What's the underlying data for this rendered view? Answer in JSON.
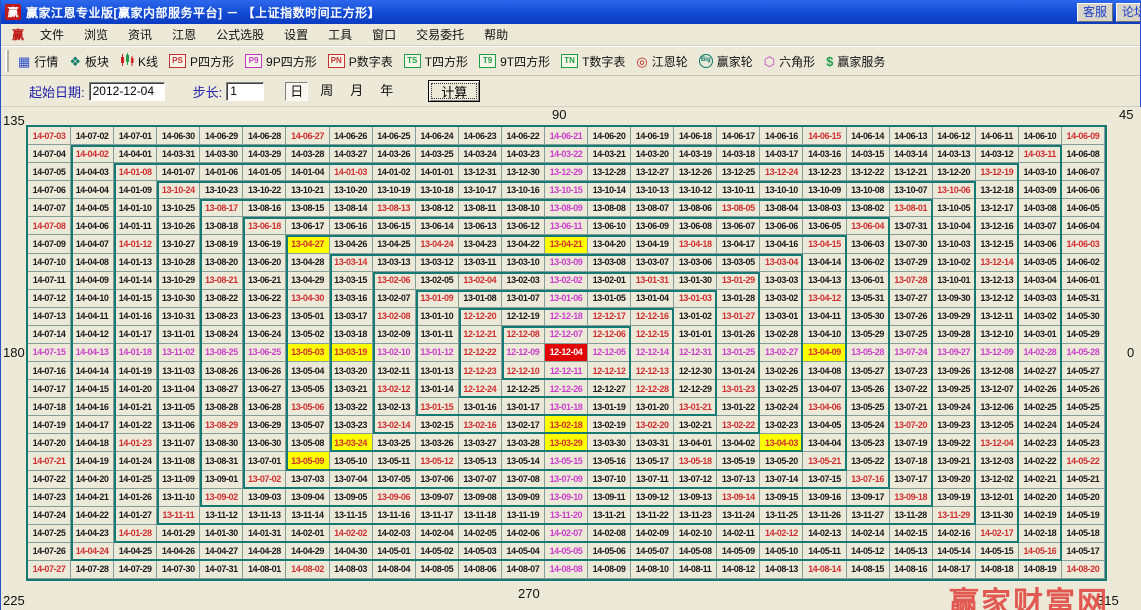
{
  "window": {
    "logo": "赢",
    "title": "赢家江恩专业版[赢家内部服务平台] － 【上证指数时间正方形】",
    "titlebar_buttons": [
      "客服",
      "论坛"
    ]
  },
  "menu": {
    "items": [
      "赢",
      "文件",
      "浏览",
      "资讯",
      "江恩",
      "公式选股",
      "设置",
      "工具",
      "窗口",
      "交易委托",
      "帮助"
    ]
  },
  "toolbar": {
    "items": [
      {
        "icon": "quote-table-icon",
        "label": "行情"
      },
      {
        "icon": "blocks-icon",
        "label": "板块"
      },
      {
        "icon": "kline-icon",
        "label": "K线"
      },
      {
        "icon": "badge-ps-icon",
        "badge": "PS",
        "badge_color": "#c43232",
        "label": "P四方形"
      },
      {
        "icon": "badge-p9-icon",
        "badge": "P9",
        "badge_color": "#c436c4",
        "label": "9P四方形"
      },
      {
        "icon": "badge-pn-icon",
        "badge": "PN",
        "badge_color": "#c43232",
        "label": "P数字表"
      },
      {
        "icon": "badge-ts-icon",
        "badge": "TS",
        "badge_color": "#1f9e48",
        "label": "T四方形"
      },
      {
        "icon": "badge-t9-icon",
        "badge": "T9",
        "badge_color": "#1f9e48",
        "label": "9T四方形"
      },
      {
        "icon": "badge-tn-icon",
        "badge": "TN",
        "badge_color": "#1f9e48",
        "label": "T数字表"
      },
      {
        "icon": "gann-wheel-icon",
        "label": "江恩轮"
      },
      {
        "icon": "winner-wheel-icon",
        "wheel_text": "Big",
        "label": "赢家轮"
      },
      {
        "icon": "hexagon-icon",
        "label": "六角形"
      },
      {
        "icon": "dollar-icon",
        "label": "赢家服务"
      }
    ]
  },
  "controls": {
    "start_date_label": "起始日期:",
    "start_date_value": "2012-12-04",
    "step_label": "步长:",
    "step_value": "1",
    "period_options": [
      "日",
      "周",
      "月",
      "年"
    ],
    "selected_period": "日",
    "calc_button_label": "计算"
  },
  "axis_labels": {
    "top_left": "135",
    "top": "90",
    "top_right": "45",
    "left": "180",
    "right": "0",
    "bottom_left": "225",
    "bottom": "270",
    "bottom_right": "315"
  },
  "watermark": "赢家财富网",
  "grid": {
    "description": "25x25 Gann time-square spiral of dates, +1 day per cell counterclockwise from center 2012-12-04",
    "rows": [
      "14-07-03 14-07-02 14-07-01 14-06-30 14-06-29 14-06-28 14-06-27 14-06-26 14-06-25 14-06-24 14-06-23 14-06-22 14-06-21 14-06-20 14-06-19 14-06-18 14-06-17 14-06-16 14-06-15 14-06-14 14-06-13 14-06-12 14-06-11 14-06-10 14-06-09",
      "14-07-04 14-04-02 14-04-01 14-03-31 14-03-30 14-03-29 14-03-28 14-03-27 14-03-26 14-03-25 14-03-24 14-03-23 14-03-22 14-03-21 14-03-20 14-03-19 14-03-18 14-03-17 14-03-16 14-03-15 14-03-14 14-03-13 14-03-12 14-03-11 14-06-08",
      "14-07-05 14-04-03 14-01-08 14-01-07 14-01-06 14-01-05 14-01-04 14-01-03 14-01-02 14-01-01 13-12-31 13-12-30 13-12-29 13-12-28 13-12-27 13-12-26 13-12-25 13-12-24 13-12-23 13-12-22 13-12-21 13-12-20 13-12-19 14-03-10 14-06-07",
      "14-07-06 14-04-04 14-01-09 13-10-24 13-10-23 13-10-22 13-10-21 13-10-20 13-10-19 13-10-18 13-10-17 13-10-16 13-10-15 13-10-14 13-10-13 13-10-12 13-10-11 13-10-10 13-10-09 13-10-08 13-10-07 13-10-06 13-12-18 14-03-09 14-06-06",
      "14-07-07 14-04-05 14-01-10 13-10-25 13-08-17 13-08-16 13-08-15 13-08-14 13-08-13 13-08-12 13-08-11 13-08-10 13-08-09 13-08-08 13-08-07 13-08-06 13-08-05 13-08-04 13-08-03 13-08-02 13-08-01 13-10-05 13-12-17 14-03-08 14-06-05",
      "14-07-08 14-04-06 14-01-11 13-10-26 13-08-18 13-06-18 13-06-17 13-06-16 13-06-15 13-06-14 13-06-13 13-06-12 13-06-11 13-06-10 13-06-09 13-06-08 13-06-07 13-06-06 13-06-05 13-06-04 13-07-31 13-10-04 13-12-16 14-03-07 14-06-04",
      "14-07-09 14-04-07 14-01-12 13-10-27 13-08-19 13-06-19 13-04-27 13-04-26 13-04-25 13-04-24 13-04-23 13-04-22 13-04-21 13-04-20 13-04-19 13-04-18 13-04-17 13-04-16 13-04-15 13-06-03 13-07-30 13-10-03 13-12-15 14-03-06 14-06-03",
      "14-07-10 14-04-08 14-01-13 13-10-28 13-08-20 13-06-20 13-04-28 13-03-14 13-03-13 13-03-12 13-03-11 13-03-10 13-03-09 13-03-08 13-03-07 13-03-06 13-03-05 13-03-04 13-04-14 13-06-02 13-07-29 13-10-02 13-12-14 14-03-05 14-06-02",
      "14-07-11 14-04-09 14-01-14 13-10-29 13-08-21 13-06-21 13-04-29 13-03-15 13-02-06 13-02-05 13-02-04 13-02-03 13-02-02 13-02-01 13-01-31 13-01-30 13-01-29 13-03-03 13-04-13 13-06-01 13-07-28 13-10-01 13-12-13 14-03-04 14-06-01",
      "14-07-12 14-04-10 14-01-15 13-10-30 13-08-22 13-06-22 13-04-30 13-03-16 13-02-07 13-01-09 13-01-08 13-01-07 13-01-06 13-01-05 13-01-04 13-01-03 13-01-28 13-03-02 13-04-12 13-05-31 13-07-27 13-09-30 13-12-12 14-03-03 14-05-31",
      "14-07-13 14-04-11 14-01-16 13-10-31 13-08-23 13-06-23 13-05-01 13-03-17 13-02-08 13-01-10 12-12-20 12-12-19 12-12-18 12-12-17 12-12-16 13-01-02 13-01-27 13-03-01 13-04-11 13-05-30 13-07-26 13-09-29 13-12-11 14-03-02 14-05-30",
      "14-07-14 14-04-12 14-01-17 13-11-01 13-08-24 13-06-24 13-05-02 13-03-18 13-02-09 13-01-11 12-12-21 12-12-08 12-12-07 12-12-06 12-12-15 13-01-01 13-01-26 13-02-28 13-04-10 13-05-29 13-07-25 13-09-28 13-12-10 14-03-01 14-05-29",
      "14-07-15 14-04-13 14-01-18 13-11-02 13-08-25 13-06-25 13-05-03 13-03-19 13-02-10 13-01-12 12-12-22 12-12-09 12-12-04 12-12-05 12-12-14 12-12-31 13-01-25 13-02-27 13-04-09 13-05-28 13-07-24 13-09-27 13-12-09 14-02-28 14-05-28",
      "14-07-16 14-04-14 14-01-19 13-11-03 13-08-26 13-06-26 13-05-04 13-03-20 13-02-11 13-01-13 12-12-23 12-12-10 12-12-11 12-12-12 12-12-13 12-12-30 13-01-24 13-02-26 13-04-08 13-05-27 13-07-23 13-09-26 13-12-08 14-02-27 14-05-27",
      "14-07-17 14-04-15 14-01-20 13-11-04 13-08-27 13-06-27 13-05-05 13-03-21 13-02-12 13-01-14 12-12-24 12-12-25 12-12-26 12-12-27 12-12-28 12-12-29 13-01-23 13-02-25 13-04-07 13-05-26 13-07-22 13-09-25 13-12-07 14-02-26 14-05-26",
      "14-07-18 14-04-16 14-01-21 13-11-05 13-08-28 13-06-28 13-05-06 13-03-22 13-02-13 13-01-15 13-01-16 13-01-17 13-01-18 13-01-19 13-01-20 13-01-21 13-01-22 13-02-24 13-04-06 13-05-25 13-07-21 13-09-24 13-12-06 14-02-25 14-05-25",
      "14-07-19 14-04-17 14-01-22 13-11-06 13-08-29 13-06-29 13-05-07 13-03-23 13-02-14 13-02-15 13-02-16 13-02-17 13-02-18 13-02-19 13-02-20 13-02-21 13-02-22 13-02-23 13-04-05 13-05-24 13-07-20 13-09-23 13-12-05 14-02-24 14-05-24",
      "14-07-20 14-04-18 14-01-23 13-11-07 13-08-30 13-06-30 13-05-08 13-03-24 13-03-25 13-03-26 13-03-27 13-03-28 13-03-29 13-03-30 13-03-31 13-04-01 13-04-02 13-04-03 13-04-04 13-05-23 13-07-19 13-09-22 13-12-04 14-02-23 14-05-23",
      "14-07-21 14-04-19 14-01-24 13-11-08 13-08-31 13-07-01 13-05-09 13-05-10 13-05-11 13-05-12 13-05-13 13-05-14 13-05-15 13-05-16 13-05-17 13-05-18 13-05-19 13-05-20 13-05-21 13-05-22 13-07-18 13-09-21 13-12-03 14-02-22 14-05-22",
      "14-07-22 14-04-20 14-01-25 13-11-09 13-09-01 13-07-02 13-07-03 13-07-04 13-07-05 13-07-06 13-07-07 13-07-08 13-07-09 13-07-10 13-07-11 13-07-12 13-07-13 13-07-14 13-07-15 13-07-16 13-07-17 13-09-20 13-12-02 14-02-21 14-05-21",
      "14-07-23 14-04-21 14-01-26 13-11-10 13-09-02 13-09-03 13-09-04 13-09-05 13-09-06 13-09-07 13-09-08 13-09-09 13-09-10 13-09-11 13-09-12 13-09-13 13-09-14 13-09-15 13-09-16 13-09-17 13-09-18 13-09-19 13-12-01 14-02-20 14-05-20",
      "14-07-24 14-04-22 14-01-27 13-11-11 13-11-12 13-11-13 13-11-14 13-11-15 13-11-16 13-11-17 13-11-18 13-11-19 13-11-20 13-11-21 13-11-22 13-11-23 13-11-24 13-11-25 13-11-26 13-11-27 13-11-28 13-11-29 13-11-30 14-02-19 14-05-19",
      "14-07-25 14-04-23 14-01-28 14-01-29 14-01-30 14-01-31 14-02-01 14-02-02 14-02-03 14-02-04 14-02-05 14-02-06 14-02-07 14-02-08 14-02-09 14-02-10 14-02-11 14-02-12 14-02-13 14-02-14 14-02-15 14-02-16 14-02-17 14-02-18 14-05-18",
      "14-07-26 14-04-24 14-04-25 14-04-26 14-04-27 14-04-28 14-04-29 14-04-30 14-05-01 14-05-02 14-05-03 14-05-04 14-05-05 14-05-06 14-05-07 14-05-08 14-05-09 14-05-10 14-05-11 14-05-12 14-05-13 14-05-14 14-05-15 14-05-16 14-05-17",
      "14-07-27 14-07-28 14-07-29 14-07-30 14-07-31 14-08-01 14-08-02 14-08-03 14-08-04 14-08-05 14-08-06 14-08-07 14-08-08 14-08-09 14-08-10 14-08-11 14-08-12 14-08-13 14-08-14 14-08-15 14-08-16 14-08-17 14-08-18 14-08-19 14-08-20"
    ],
    "center_date": "12-12-04",
    "red_dates": [
      "12-12-06",
      "12-12-08",
      "12-12-10",
      "12-12-12",
      "12-12-13",
      "12-12-15",
      "12-12-16",
      "12-12-17",
      "12-12-20",
      "12-12-21",
      "12-12-22",
      "12-12-23",
      "12-12-24",
      "12-12-28",
      "13-01-03",
      "13-01-09",
      "13-01-15",
      "13-01-21",
      "13-01-23",
      "13-01-27",
      "13-01-29",
      "13-01-31",
      "13-02-04",
      "13-02-06",
      "13-02-08",
      "13-02-12",
      "13-02-14",
      "13-02-16",
      "13-02-20",
      "13-02-22",
      "13-03-04",
      "13-03-14",
      "13-04-06",
      "13-04-12",
      "13-04-15",
      "13-04-18",
      "13-04-24",
      "13-04-30",
      "13-05-06",
      "13-05-12",
      "13-05-18",
      "13-05-21",
      "13-06-04",
      "13-06-18",
      "13-07-02",
      "13-07-16",
      "13-07-20",
      "13-07-28",
      "13-08-01",
      "13-08-05",
      "13-08-13",
      "13-08-17",
      "13-08-21",
      "13-08-29",
      "13-09-02",
      "13-09-06",
      "13-09-14",
      "13-09-18",
      "13-10-06",
      "13-10-24",
      "13-11-11",
      "13-11-29",
      "13-12-04",
      "13-12-14",
      "13-12-19",
      "13-12-24",
      "14-01-03",
      "14-01-08",
      "14-01-12",
      "14-01-23",
      "14-01-28",
      "14-02-02",
      "14-02-12",
      "14-02-17",
      "14-03-11",
      "14-04-02",
      "14-04-24",
      "14-05-16",
      "14-05-22",
      "14-06-03",
      "14-06-09",
      "14-06-15",
      "14-06-27",
      "14-07-03",
      "14-07-08",
      "14-07-21",
      "14-07-27",
      "14-08-02",
      "14-08-14",
      "14-08-20"
    ],
    "magenta_dates": [
      "12-12-05",
      "12-12-07",
      "12-12-09",
      "12-12-11",
      "12-12-14",
      "12-12-18",
      "12-12-26",
      "12-12-31",
      "13-01-06",
      "13-01-12",
      "13-01-18",
      "13-01-25",
      "13-02-02",
      "13-02-10",
      "13-02-27",
      "13-03-09",
      "13-05-15",
      "13-05-28",
      "13-06-11",
      "13-06-25",
      "13-07-09",
      "13-07-24",
      "13-08-09",
      "13-08-25",
      "13-09-10",
      "13-09-27",
      "13-10-15",
      "13-11-02",
      "13-11-20",
      "13-12-09",
      "13-12-29",
      "14-01-18",
      "14-02-07",
      "14-02-28",
      "14-03-22",
      "14-04-13",
      "14-05-05",
      "14-05-28",
      "14-06-21",
      "14-07-15",
      "14-08-08"
    ],
    "yellow_dates": [
      "13-02-18",
      "13-03-19",
      "13-03-24",
      "13-03-29",
      "13-04-03",
      "13-04-09",
      "13-04-21",
      "13-04-27",
      "13-05-03",
      "13-05-09"
    ]
  },
  "colors": {
    "titlebar_blue": "#1048d2",
    "chrome_beige": "#ece9d8",
    "ring_border_teal": "#157a74",
    "cell_red_text": "#cf2f2f",
    "cell_magenta_text": "#cb3fcb",
    "cell_yellow_bg": "#ffff00",
    "center_cell_bg": "#e00404",
    "watermark_red": "#e14a44"
  }
}
